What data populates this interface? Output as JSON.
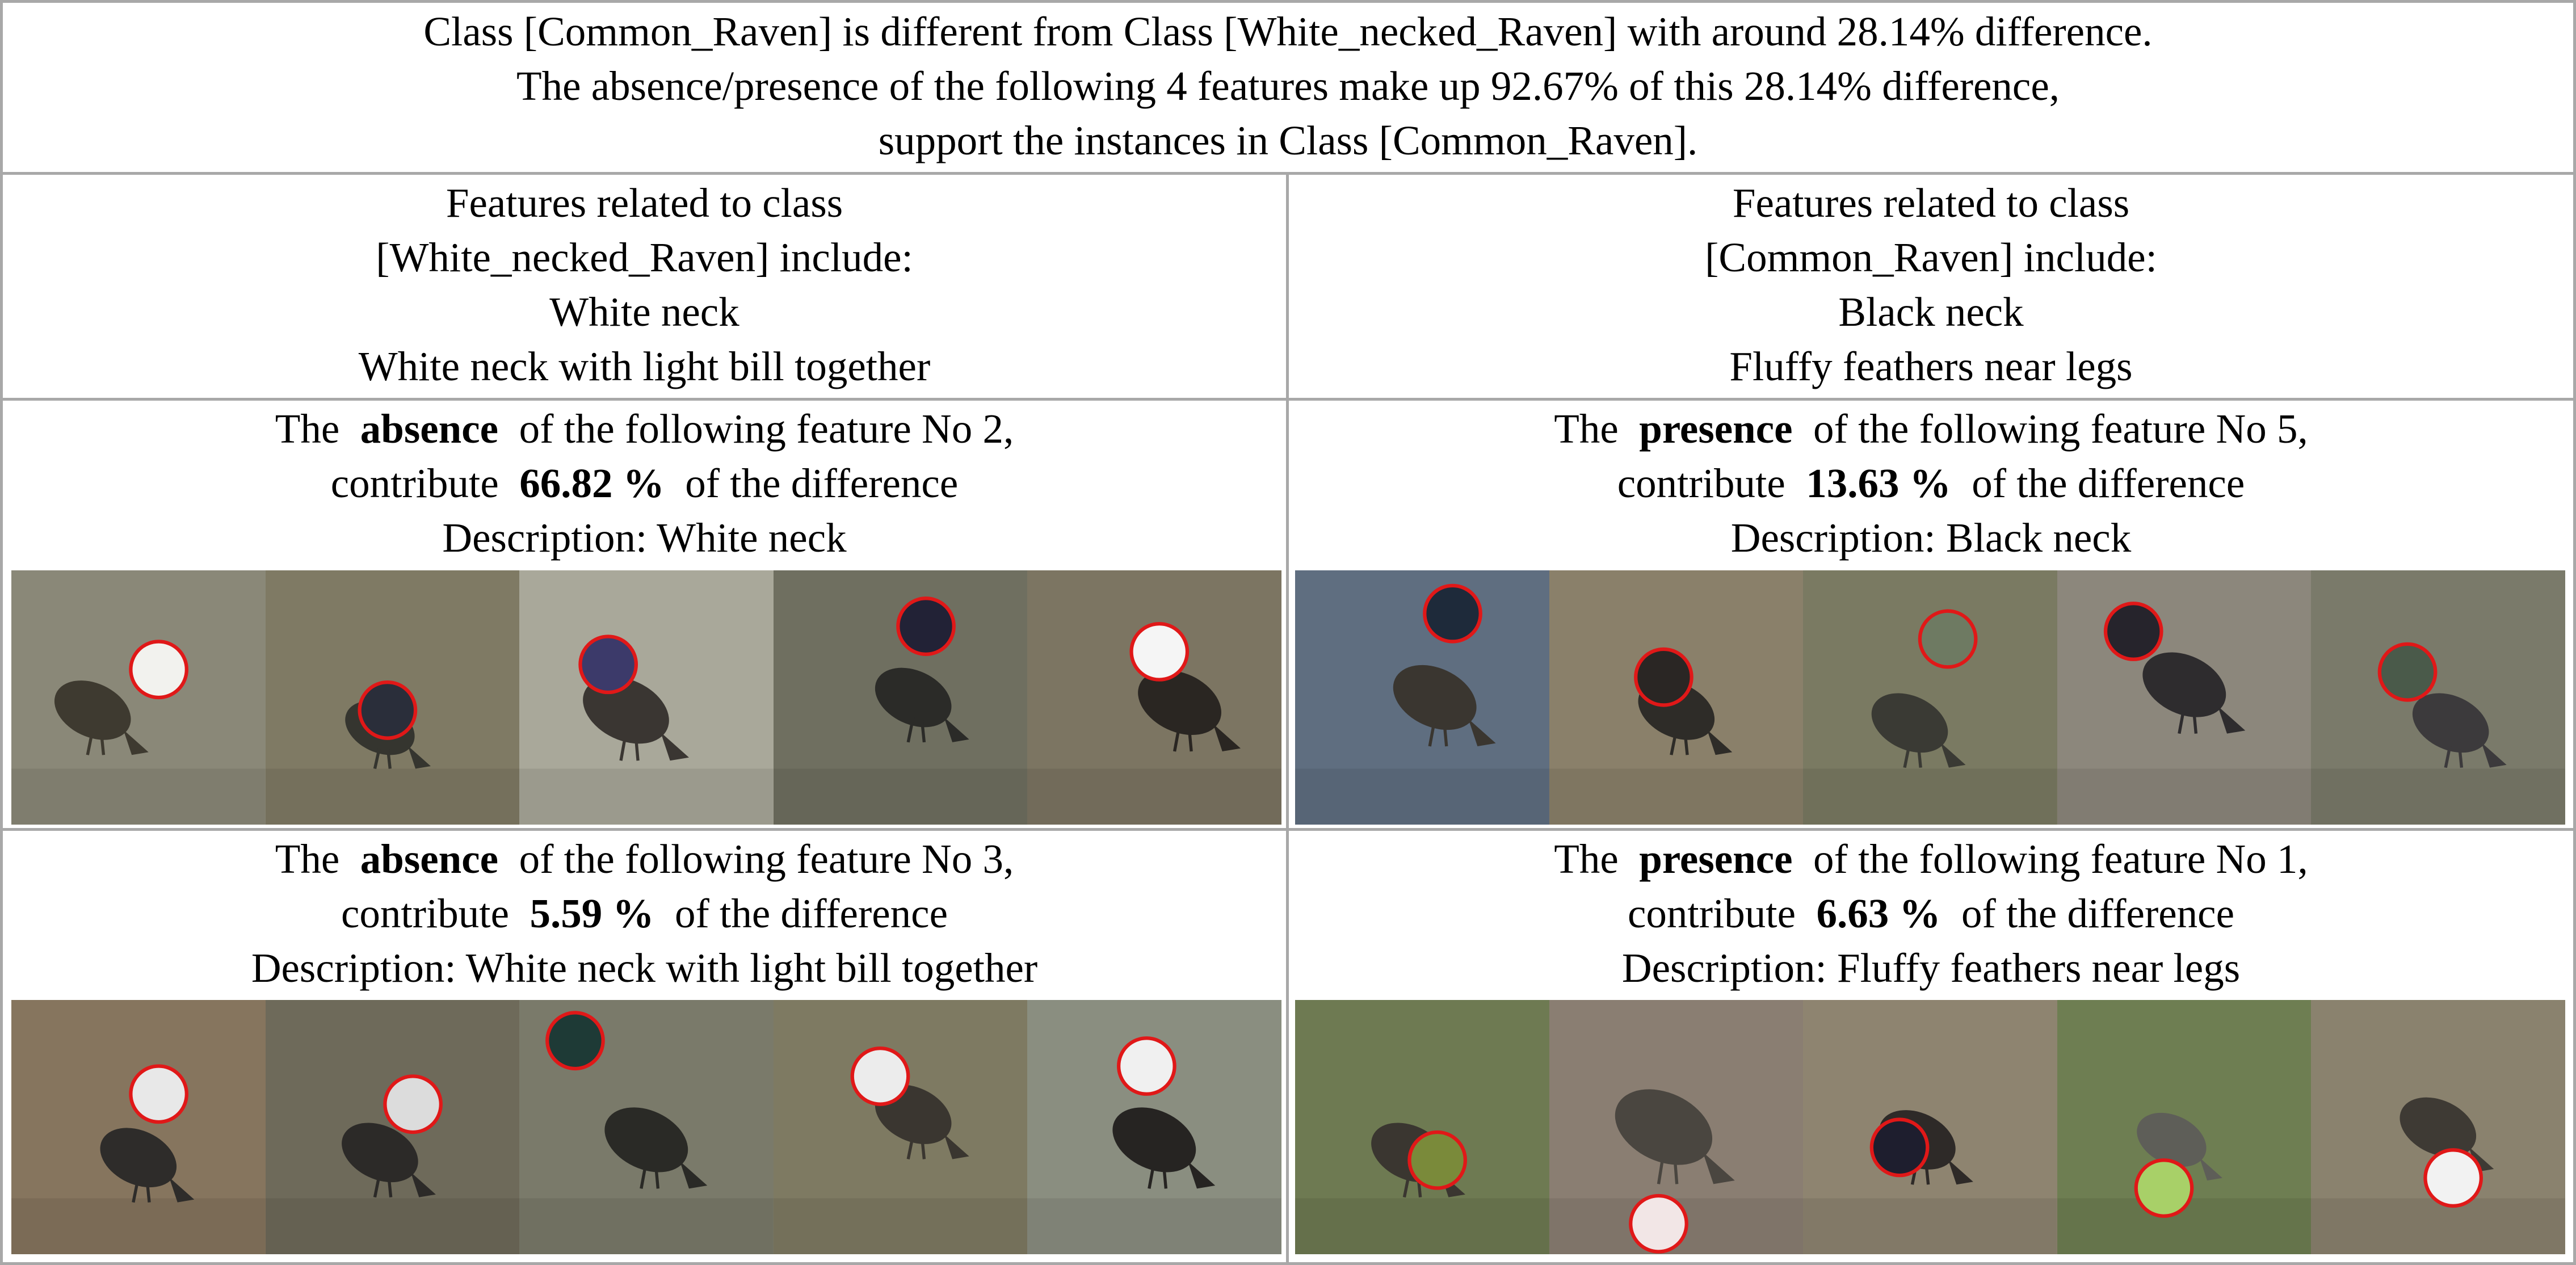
{
  "header": {
    "line1": "Class [Common_Raven] is different from Class [White_necked_Raven] with around 28.14% difference.",
    "line2": "The absence/presence of the following 4 features make up 92.67% of this 28.14% difference,",
    "line3": "support the instances in Class [Common_Raven]."
  },
  "left_summary": {
    "line1": "Features related to class",
    "line2": "[White_necked_Raven] include:",
    "line3": "White neck",
    "line4": "White neck with light bill together"
  },
  "right_summary": {
    "line1": "Features related to class",
    "line2": "[Common_Raven] include:",
    "line3": "Black neck",
    "line4": "Fluffy feathers near legs"
  },
  "features": [
    {
      "prefix": "The",
      "kind": "absence",
      "mid": "of the following feature No 2,",
      "contrib_prefix": "contribute",
      "percent": "66.82 %",
      "contrib_suffix": "of the difference",
      "description": "Description: White neck",
      "images": [
        {
          "bg": "#8a8878",
          "bird": "#3e3a30",
          "patch": "#f2f2ee"
        },
        {
          "bg": "#7f7a64",
          "bird": "#35352f",
          "patch": "#2a2e3a"
        },
        {
          "bg": "#a9a89a",
          "bird": "#3a3632",
          "patch": "#3c3a6a"
        },
        {
          "bg": "#6f6f60",
          "bird": "#2b2b28",
          "patch": "#222236"
        },
        {
          "bg": "#7c7562",
          "bird": "#2a2622",
          "patch": "#f5f5f5"
        }
      ]
    },
    {
      "prefix": "The",
      "kind": "presence",
      "mid": "of the following feature No 5,",
      "contrib_prefix": "contribute",
      "percent": "13.63 %",
      "contrib_suffix": "of the difference",
      "description": "Description: Black neck",
      "images": [
        {
          "bg": "#5f6e80",
          "bird": "#3a3630",
          "patch": "#1e2a3a"
        },
        {
          "bg": "#8a806a",
          "bird": "#2e2c28",
          "patch": "#2a2624"
        },
        {
          "bg": "#7a7a62",
          "bird": "#3a3a34",
          "patch": "#6e7a62"
        },
        {
          "bg": "#8c877c",
          "bird": "#2e2c2e",
          "patch": "#26242c"
        },
        {
          "bg": "#7a7a6a",
          "bird": "#3c3a3c",
          "patch": "#4a5a4a"
        }
      ]
    },
    {
      "prefix": "The",
      "kind": "absence",
      "mid": "of the following feature No 3,",
      "contrib_prefix": "contribute",
      "percent": "5.59 %",
      "contrib_suffix": "of the difference",
      "description": "Description: White neck with light bill together",
      "images": [
        {
          "bg": "#86755e",
          "bird": "#2e2c2a",
          "patch": "#e8e8e8"
        },
        {
          "bg": "#6e6a5a",
          "bird": "#2c2a28",
          "patch": "#dcdcdc"
        },
        {
          "bg": "#7a7a6a",
          "bird": "#2a2a26",
          "patch": "#1e3a36"
        },
        {
          "bg": "#7e7a62",
          "bird": "#3a3630",
          "patch": "#ececec"
        },
        {
          "bg": "#8a8e80",
          "bird": "#262422",
          "patch": "#f0f0f0"
        }
      ]
    },
    {
      "prefix": "The",
      "kind": "presence",
      "mid": "of the following feature No 1,",
      "contrib_prefix": "contribute",
      "percent": "6.63 %",
      "contrib_suffix": "of the difference",
      "description": "Description: Fluffy feathers near legs",
      "images": [
        {
          "bg": "#6e7a52",
          "bird": "#3a3630",
          "patch": "#7a8a3a"
        },
        {
          "bg": "#8a7e72",
          "bird": "#4a4640",
          "patch": "#f2e6e6"
        },
        {
          "bg": "#8e8470",
          "bird": "#2e2a28",
          "patch": "#1e1e2e"
        },
        {
          "bg": "#6e7e52",
          "bird": "#5e5e58",
          "patch": "#a8d068"
        },
        {
          "bg": "#8a826e",
          "bird": "#3e3a34",
          "patch": "#f2f2f2"
        }
      ]
    }
  ]
}
